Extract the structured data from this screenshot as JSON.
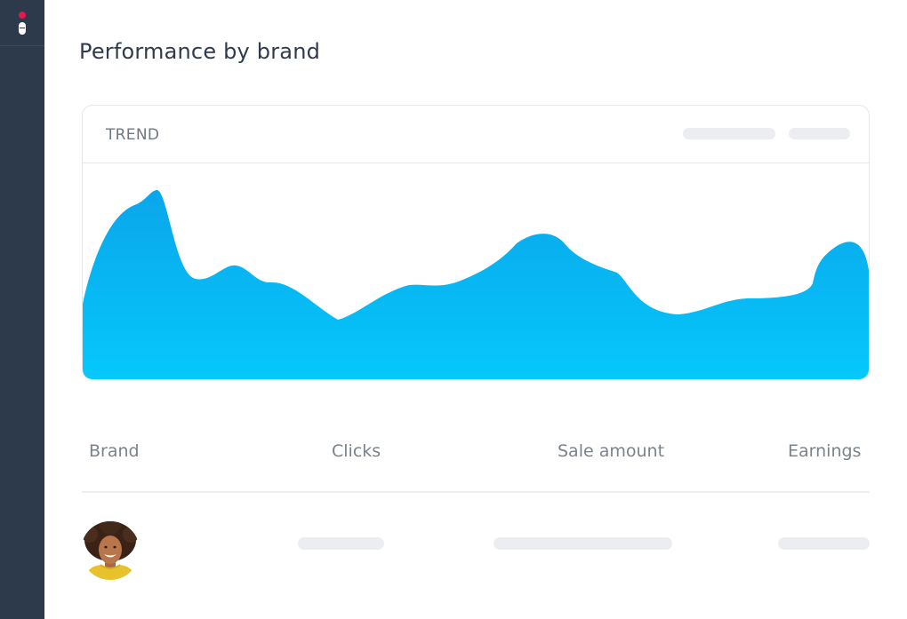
{
  "page": {
    "title": "Performance by brand"
  },
  "trend_card": {
    "title": "TREND"
  },
  "table": {
    "columns": [
      "Brand",
      "Clicks",
      "Sale amount",
      "Earnings"
    ]
  },
  "colors": {
    "sidebar": "#2c3a4b",
    "logo_dot": "#e5174f",
    "chart_top": "#0aa6ea",
    "chart_bottom": "#05c8fb",
    "placeholder": "#ebedf0"
  },
  "icons": {
    "logo": "brand-logo-icon",
    "avatar": "user-avatar"
  }
}
